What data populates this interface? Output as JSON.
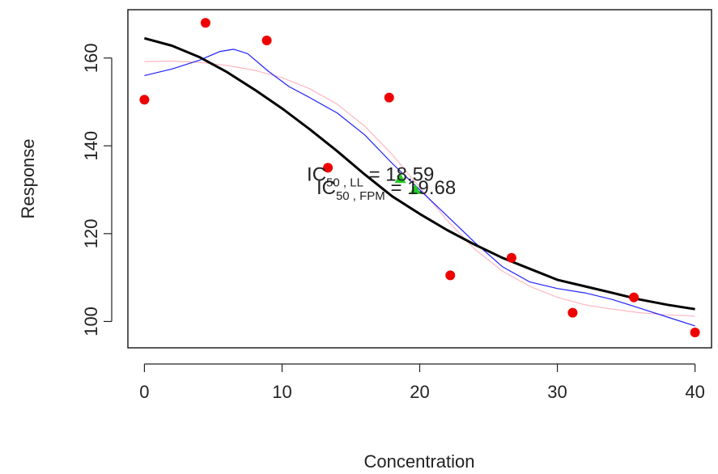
{
  "chart_data": {
    "type": "scatter",
    "title": "",
    "xlabel": "Concentration",
    "ylabel": "Response",
    "xlim": [
      -1.2,
      41.2
    ],
    "ylim": [
      94,
      171
    ],
    "x_ticks": [
      0,
      10,
      20,
      30,
      40
    ],
    "y_ticks": [
      100,
      120,
      140,
      160
    ],
    "grid": false,
    "legend": "none",
    "points": {
      "color": "#ee0000",
      "x": [
        0,
        4.44,
        8.89,
        13.33,
        17.78,
        22.22,
        26.67,
        31.11,
        35.56,
        40
      ],
      "y": [
        150.5,
        168,
        164,
        135,
        151,
        110.5,
        114.5,
        102,
        105.5,
        97.5
      ]
    },
    "curves": [
      {
        "color": "#ffb6c1",
        "width": 1.2,
        "x": [
          0,
          2,
          4,
          6,
          8,
          10,
          12,
          14,
          16,
          18,
          20,
          22,
          24,
          26,
          28,
          30,
          32,
          34,
          36,
          38,
          40
        ],
        "y": [
          159.2,
          159.3,
          159,
          158.3,
          157.2,
          155.5,
          153,
          149.5,
          144.5,
          138,
          130.5,
          123,
          116.5,
          111.5,
          108,
          105.5,
          103.8,
          102.8,
          102,
          101.5,
          101.2
        ]
      },
      {
        "color": "#2020ff",
        "width": 1.2,
        "x": [
          0,
          2,
          4,
          5.5,
          6.5,
          7.5,
          9,
          10.5,
          12,
          14,
          16,
          18,
          20,
          22,
          24,
          26,
          28,
          30,
          32,
          34,
          36,
          38,
          40
        ],
        "y": [
          156,
          157.5,
          159.5,
          161.5,
          162,
          161,
          157,
          153.5,
          151,
          147.5,
          142.5,
          136,
          130,
          124,
          118,
          112.5,
          109,
          107.5,
          106.5,
          105,
          103,
          101,
          99
        ]
      },
      {
        "color": "#000000",
        "width": 3,
        "x": [
          0,
          2,
          4,
          6,
          8,
          10,
          12,
          14,
          16,
          18,
          20,
          22,
          24,
          26,
          28,
          30,
          32,
          34,
          36,
          38,
          40
        ],
        "y": [
          164.5,
          162.8,
          160.2,
          156.8,
          152.8,
          148.5,
          143.8,
          138.8,
          133.5,
          128.5,
          124.5,
          120.8,
          117.5,
          114.5,
          112,
          109.5,
          108,
          106.5,
          105,
          103.8,
          102.8
        ]
      }
    ],
    "markers": [
      {
        "x": 18.59,
        "y": 132.5,
        "color": "#22cc22",
        "shape": "triangle"
      },
      {
        "x": 19.68,
        "y": 130,
        "color": "#22cc22",
        "shape": "triangle"
      }
    ],
    "annotations": [
      {
        "main": "IC",
        "sub": "50 , LL",
        "value": " = 18.59",
        "x": 11.8,
        "y": 132.0
      },
      {
        "main": "IC",
        "sub": "50 , FPM",
        "value": " = 19.68",
        "x": 12.5,
        "y": 129.0
      }
    ]
  }
}
